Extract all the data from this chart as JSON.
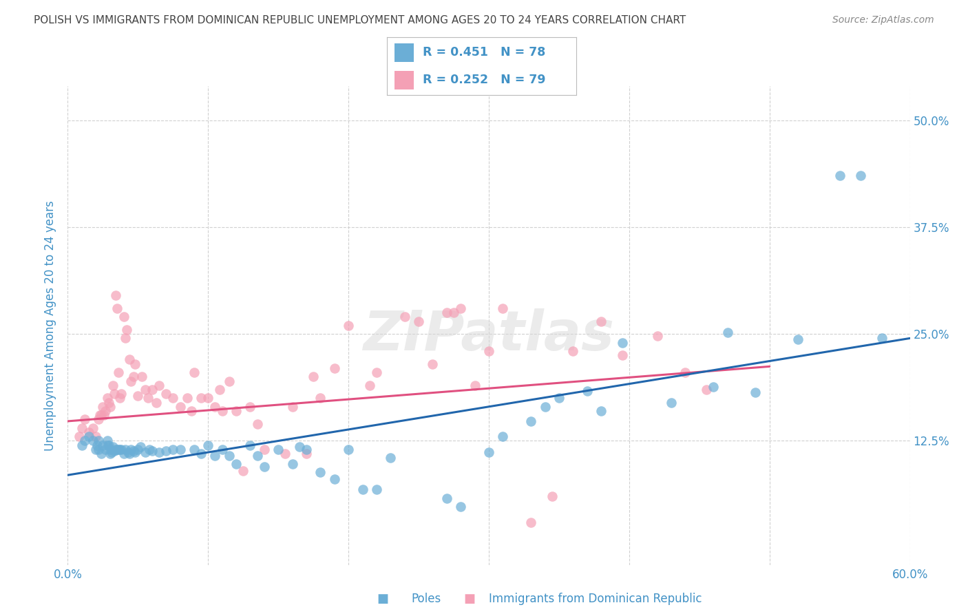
{
  "title": "POLISH VS IMMIGRANTS FROM DOMINICAN REPUBLIC UNEMPLOYMENT AMONG AGES 20 TO 24 YEARS CORRELATION CHART",
  "source": "Source: ZipAtlas.com",
  "ylabel": "Unemployment Among Ages 20 to 24 years",
  "xlim": [
    0.0,
    0.6
  ],
  "ylim": [
    -0.02,
    0.54
  ],
  "xticks": [
    0.0,
    0.1,
    0.2,
    0.3,
    0.4,
    0.5,
    0.6
  ],
  "xticklabels": [
    "0.0%",
    "",
    "",
    "",
    "",
    "",
    "60.0%"
  ],
  "yticks": [
    0.0,
    0.125,
    0.25,
    0.375,
    0.5
  ],
  "yticklabels_left": [
    "",
    "",
    "",
    "",
    ""
  ],
  "yticklabels_right": [
    "",
    "12.5%",
    "25.0%",
    "37.5%",
    "50.0%"
  ],
  "legend_r1": "R = 0.451",
  "legend_n1": "N = 78",
  "legend_r2": "R = 0.252",
  "legend_n2": "N = 79",
  "color_blue": "#6baed6",
  "color_pink": "#f4a0b5",
  "color_blue_dark": "#2166ac",
  "color_pink_dark": "#e05080",
  "color_text_blue": "#4292c6",
  "watermark": "ZIPatlas",
  "poles_scatter_x": [
    0.01,
    0.012,
    0.015,
    0.018,
    0.02,
    0.021,
    0.022,
    0.022,
    0.024,
    0.025,
    0.027,
    0.028,
    0.028,
    0.029,
    0.03,
    0.03,
    0.031,
    0.032,
    0.033,
    0.034,
    0.035,
    0.036,
    0.037,
    0.038,
    0.04,
    0.041,
    0.043,
    0.044,
    0.045,
    0.047,
    0.048,
    0.05,
    0.052,
    0.055,
    0.058,
    0.06,
    0.065,
    0.07,
    0.075,
    0.08,
    0.09,
    0.095,
    0.1,
    0.105,
    0.11,
    0.115,
    0.12,
    0.13,
    0.135,
    0.14,
    0.15,
    0.16,
    0.165,
    0.17,
    0.18,
    0.19,
    0.2,
    0.21,
    0.22,
    0.23,
    0.27,
    0.28,
    0.3,
    0.31,
    0.33,
    0.34,
    0.35,
    0.37,
    0.38,
    0.395,
    0.43,
    0.46,
    0.47,
    0.49,
    0.52,
    0.55,
    0.565,
    0.58
  ],
  "poles_scatter_y": [
    0.12,
    0.125,
    0.13,
    0.125,
    0.115,
    0.12,
    0.115,
    0.125,
    0.11,
    0.12,
    0.115,
    0.12,
    0.125,
    0.12,
    0.11,
    0.115,
    0.112,
    0.118,
    0.113,
    0.115,
    0.115,
    0.115,
    0.115,
    0.115,
    0.11,
    0.115,
    0.112,
    0.11,
    0.115,
    0.113,
    0.112,
    0.115,
    0.118,
    0.112,
    0.115,
    0.113,
    0.112,
    0.113,
    0.115,
    0.115,
    0.115,
    0.11,
    0.12,
    0.108,
    0.115,
    0.108,
    0.098,
    0.12,
    0.108,
    0.095,
    0.115,
    0.098,
    0.118,
    0.115,
    0.088,
    0.08,
    0.115,
    0.068,
    0.068,
    0.105,
    0.058,
    0.048,
    0.112,
    0.13,
    0.148,
    0.165,
    0.175,
    0.183,
    0.16,
    0.24,
    0.17,
    0.188,
    0.252,
    0.182,
    0.244,
    0.435,
    0.435,
    0.245
  ],
  "dr_scatter_x": [
    0.008,
    0.01,
    0.012,
    0.015,
    0.018,
    0.02,
    0.022,
    0.023,
    0.024,
    0.025,
    0.026,
    0.027,
    0.028,
    0.029,
    0.03,
    0.032,
    0.033,
    0.034,
    0.035,
    0.036,
    0.037,
    0.038,
    0.04,
    0.041,
    0.042,
    0.044,
    0.045,
    0.047,
    0.048,
    0.05,
    0.053,
    0.055,
    0.057,
    0.06,
    0.063,
    0.065,
    0.07,
    0.075,
    0.08,
    0.085,
    0.088,
    0.09,
    0.095,
    0.1,
    0.105,
    0.108,
    0.11,
    0.115,
    0.12,
    0.125,
    0.13,
    0.135,
    0.14,
    0.155,
    0.16,
    0.17,
    0.175,
    0.18,
    0.19,
    0.2,
    0.215,
    0.22,
    0.24,
    0.25,
    0.26,
    0.27,
    0.275,
    0.28,
    0.29,
    0.3,
    0.31,
    0.33,
    0.345,
    0.36,
    0.38,
    0.395,
    0.42,
    0.44,
    0.455
  ],
  "dr_scatter_y": [
    0.13,
    0.14,
    0.15,
    0.135,
    0.14,
    0.13,
    0.15,
    0.155,
    0.155,
    0.165,
    0.155,
    0.16,
    0.175,
    0.17,
    0.165,
    0.19,
    0.18,
    0.295,
    0.28,
    0.205,
    0.175,
    0.18,
    0.27,
    0.245,
    0.255,
    0.22,
    0.195,
    0.2,
    0.215,
    0.178,
    0.2,
    0.185,
    0.175,
    0.185,
    0.17,
    0.19,
    0.18,
    0.175,
    0.165,
    0.175,
    0.16,
    0.205,
    0.175,
    0.175,
    0.165,
    0.185,
    0.16,
    0.195,
    0.16,
    0.09,
    0.165,
    0.145,
    0.115,
    0.11,
    0.165,
    0.11,
    0.2,
    0.175,
    0.21,
    0.26,
    0.19,
    0.205,
    0.27,
    0.265,
    0.215,
    0.275,
    0.275,
    0.28,
    0.19,
    0.23,
    0.28,
    0.03,
    0.06,
    0.23,
    0.265,
    0.225,
    0.248,
    0.205,
    0.185
  ],
  "blue_line_x": [
    0.0,
    0.6
  ],
  "blue_line_y": [
    0.085,
    0.245
  ],
  "pink_line_x": [
    0.0,
    0.5
  ],
  "pink_line_y": [
    0.148,
    0.212
  ],
  "background_color": "#ffffff",
  "grid_color": "#d0d0d0",
  "title_color": "#444444",
  "tick_color": "#4292c6"
}
